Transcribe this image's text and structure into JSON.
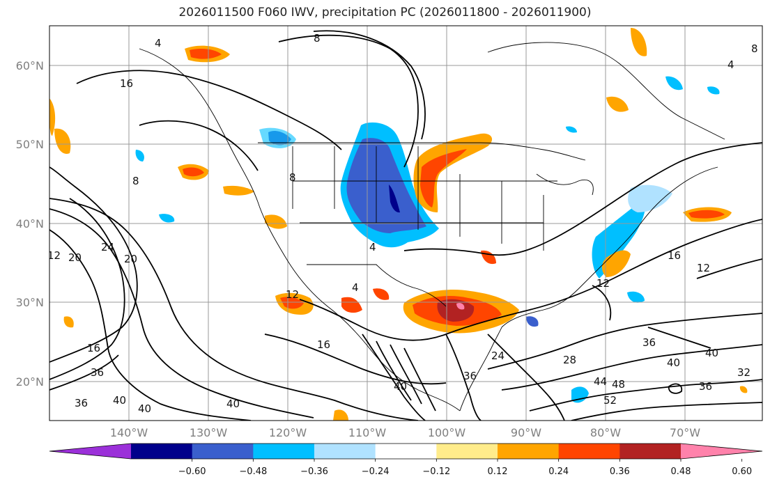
{
  "title": "2026011500 F060 IWV, precipitation PC (2026011800 - 2026011900)",
  "lat_labels": [
    "60°N",
    "50°N",
    "40°N",
    "30°N",
    "20°N"
  ],
  "lon_labels": [
    "140°W",
    "130°W",
    "120°W",
    "110°W",
    "100°W",
    "90°W",
    "80°W",
    "70°W"
  ],
  "colorbar": {
    "ticks": [
      "−0.60",
      "−0.48",
      "−0.36",
      "−0.24",
      "−0.12",
      "0.12",
      "0.24",
      "0.36",
      "0.48",
      "0.60"
    ],
    "colors": [
      "#9b30d9",
      "#00008b",
      "#3a5fcd",
      "#00bfff",
      "#b0e2ff",
      "#ffffff",
      "#ffec8b",
      "#ffa500",
      "#ff4500",
      "#b22222",
      "#ff82ab"
    ]
  },
  "contour_labels": [
    "8",
    "4",
    "16",
    "8",
    "8",
    "4",
    "12",
    "20",
    "24",
    "20",
    "4",
    "12",
    "16",
    "12",
    "16",
    "12",
    "16",
    "36",
    "40",
    "40",
    "36",
    "40",
    "24",
    "28",
    "36",
    "40",
    "44",
    "48",
    "52",
    "40",
    "36",
    "40",
    "36",
    "32",
    "4",
    "8"
  ]
}
